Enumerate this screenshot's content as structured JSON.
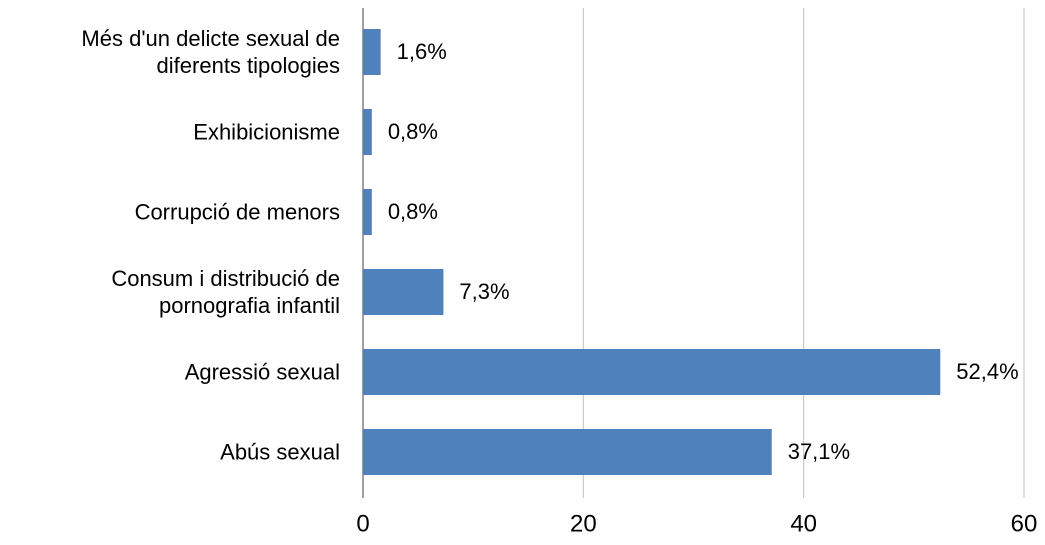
{
  "chart_data": {
    "type": "bar",
    "orientation": "horizontal",
    "categories": [
      "Més d'un delicte sexual de diferents tipologies",
      "Exhibicionisme",
      "Corrupció de menors",
      "Consum i distribució de pornografia infantil",
      "Agressió sexual",
      "Abús sexual"
    ],
    "values": [
      1.6,
      0.8,
      0.8,
      7.3,
      52.4,
      37.1
    ],
    "value_labels": [
      "1,6%",
      "0,8%",
      "0,8%",
      "7,3%",
      "52,4%",
      "37,1%"
    ],
    "color": "#4f81bd",
    "xlim": [
      0,
      60
    ],
    "xticks": [
      0,
      20,
      40,
      60
    ],
    "grid": true
  }
}
